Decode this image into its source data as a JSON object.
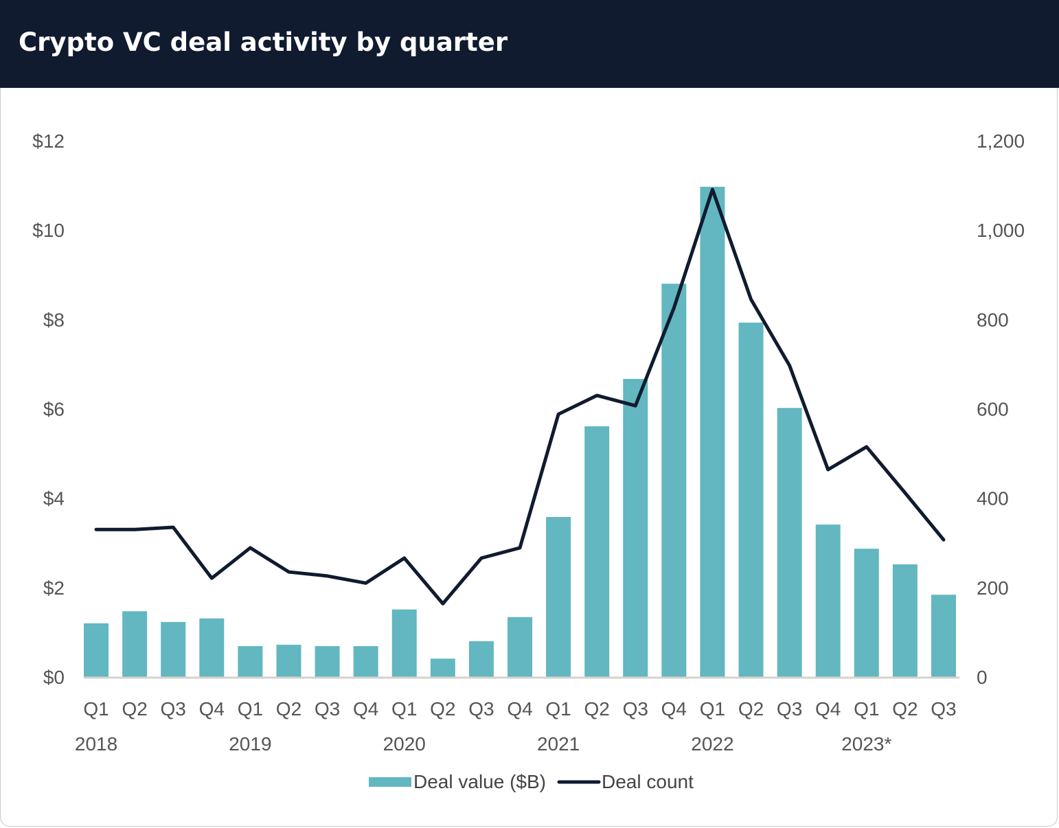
{
  "header": {
    "title": "Crypto VC deal activity by quarter"
  },
  "colors": {
    "header_bg": "#101b30",
    "bar": "#62b7c0",
    "line": "#101b30",
    "axis": "#d6d2cc"
  },
  "chart_data": {
    "type": "bar",
    "title": "Crypto VC deal activity by quarter",
    "categories": [
      "Q1",
      "Q2",
      "Q3",
      "Q4",
      "Q1",
      "Q2",
      "Q3",
      "Q4",
      "Q1",
      "Q2",
      "Q3",
      "Q4",
      "Q1",
      "Q2",
      "Q3",
      "Q4",
      "Q1",
      "Q2",
      "Q3",
      "Q4",
      "Q1",
      "Q2",
      "Q3"
    ],
    "year_labels": [
      {
        "label": "2018",
        "index": 0
      },
      {
        "label": "2019",
        "index": 4
      },
      {
        "label": "2020",
        "index": 8
      },
      {
        "label": "2021",
        "index": 12
      },
      {
        "label": "2022",
        "index": 16
      },
      {
        "label": "2023*",
        "index": 20
      }
    ],
    "series": [
      {
        "name": "Deal value ($B)",
        "type": "bar",
        "axis": "left",
        "values": [
          1.2,
          1.47,
          1.23,
          1.31,
          0.69,
          0.72,
          0.69,
          0.69,
          1.51,
          0.41,
          0.8,
          1.34,
          3.58,
          5.61,
          6.67,
          8.8,
          10.97,
          7.93,
          6.02,
          3.41,
          2.87,
          2.52,
          1.84
        ]
      },
      {
        "name": "Deal count",
        "type": "line",
        "axis": "right",
        "values": [
          330,
          330,
          335,
          221,
          289,
          235,
          226,
          210,
          266,
          164,
          266,
          289,
          588,
          630,
          607,
          826,
          1091,
          845,
          697,
          464,
          515,
          412,
          307
        ]
      }
    ],
    "y_left": {
      "ylim": [
        0,
        12
      ],
      "ticks": [
        0,
        2,
        4,
        6,
        8,
        10,
        12
      ],
      "tick_labels": [
        "$0",
        "$2",
        "$4",
        "$6",
        "$8",
        "$10",
        "$12"
      ]
    },
    "y_right": {
      "ylim": [
        0,
        1200
      ],
      "ticks": [
        0,
        200,
        400,
        600,
        800,
        1000,
        1200
      ],
      "tick_labels": [
        "0",
        "200",
        "400",
        "600",
        "800",
        "1,000",
        "1,200"
      ]
    },
    "xlabel": "",
    "ylabel": "",
    "grid": false,
    "legend": {
      "placement": "bottom-center",
      "entries": [
        "Deal value ($B)",
        "Deal count"
      ]
    }
  }
}
